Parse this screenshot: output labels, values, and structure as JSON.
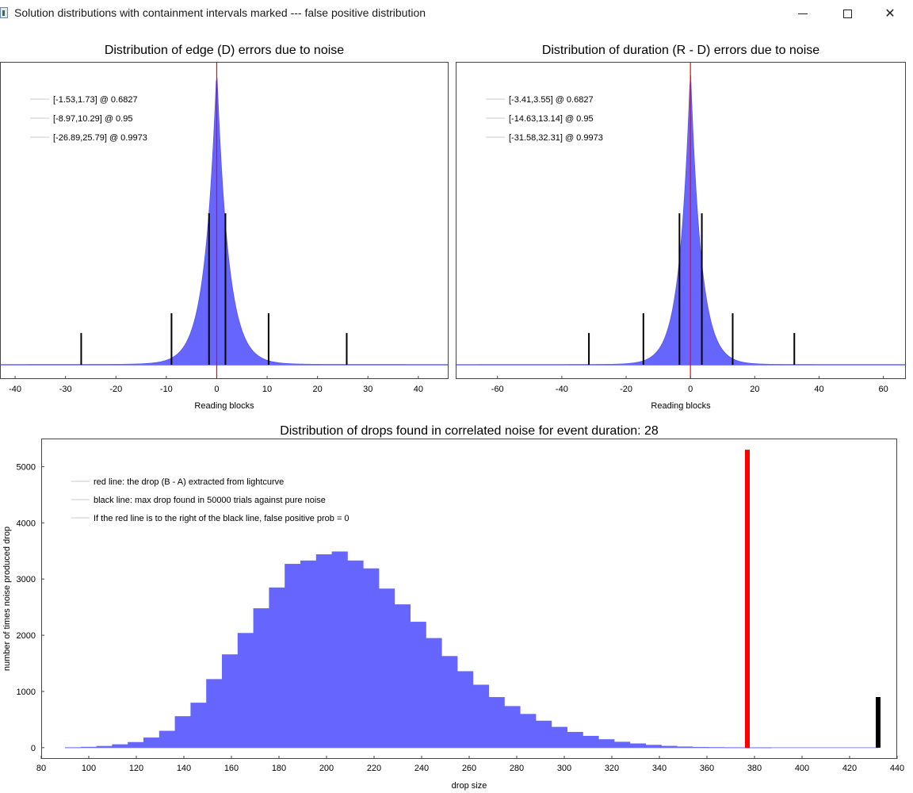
{
  "window": {
    "title": "Solution distributions with containment intervals marked --- false positive distribution",
    "minimize_icon": "minimize-icon",
    "maximize_icon": "maximize-icon",
    "close_icon": "close-icon"
  },
  "chart_data": [
    {
      "type": "area",
      "title": "Distribution of edge (D) errors due to noise",
      "xlabel": "Reading blocks",
      "ylabel": "",
      "xlim": [
        -43,
        46
      ],
      "xticks": [
        -40,
        -30,
        -20,
        -10,
        0,
        10,
        20,
        30,
        40
      ],
      "distribution": {
        "center": 0,
        "scale": 2.3,
        "fill": "#6666ff"
      },
      "red_line_x": 0,
      "interval_lines": [
        {
          "x": -1.53,
          "height": 0.5
        },
        {
          "x": 1.73,
          "height": 0.5
        },
        {
          "x": -8.97,
          "height": 0.17
        },
        {
          "x": 10.29,
          "height": 0.17
        },
        {
          "x": -26.89,
          "height": 0.105
        },
        {
          "x": 25.79,
          "height": 0.105
        }
      ],
      "legend": [
        "[-1.53,1.73] @ 0.6827",
        "[-8.97,10.29] @ 0.95",
        "[-26.89,25.79] @ 0.9973"
      ]
    },
    {
      "type": "area",
      "title": "Distribution of duration (R - D) errors due to noise",
      "xlabel": "Reading blocks",
      "ylabel": "",
      "xlim": [
        -73,
        67
      ],
      "xticks": [
        -60,
        -40,
        -20,
        0,
        20,
        40,
        60
      ],
      "distribution": {
        "center": 0,
        "scale": 3.3,
        "fill": "#6666ff"
      },
      "red_line_x": 0,
      "interval_lines": [
        {
          "x": -3.41,
          "height": 0.5
        },
        {
          "x": 3.55,
          "height": 0.5
        },
        {
          "x": -14.63,
          "height": 0.17
        },
        {
          "x": 13.14,
          "height": 0.17
        },
        {
          "x": -31.58,
          "height": 0.105
        },
        {
          "x": 32.31,
          "height": 0.105
        }
      ],
      "legend": [
        "[-3.41,3.55] @ 0.6827",
        "[-14.63,13.14] @ 0.95",
        "[-31.58,32.31] @ 0.9973"
      ]
    },
    {
      "type": "bar",
      "title": "Distribution of drops found in correlated noise for event duration: 28",
      "xlabel": "drop size",
      "ylabel": "number of times noise produced drop",
      "xlim": [
        80,
        440
      ],
      "ylim": [
        -200,
        5500
      ],
      "xticks": [
        80,
        100,
        120,
        140,
        160,
        180,
        200,
        220,
        240,
        260,
        280,
        300,
        320,
        340,
        360,
        380,
        400,
        420,
        440
      ],
      "yticks": [
        0,
        1000,
        2000,
        3000,
        4000,
        5000
      ],
      "bin_width": 6.6,
      "bin_starts": [
        90,
        96.6,
        103.2,
        109.8,
        116.4,
        123,
        129.6,
        136.2,
        142.8,
        149.4,
        156,
        162.6,
        169.2,
        175.8,
        182.4,
        189,
        195.6,
        202.2,
        208.8,
        215.4,
        222,
        228.6,
        235.2,
        241.8,
        248.4,
        255,
        261.6,
        268.2,
        274.8,
        281.4,
        288,
        294.6,
        301.2,
        307.8,
        314.4,
        321,
        327.6,
        334.2,
        340.8,
        347.4,
        354,
        360.6,
        367.2,
        373.8,
        380.4
      ],
      "values": [
        5,
        15,
        30,
        60,
        100,
        180,
        300,
        560,
        800,
        1220,
        1660,
        2040,
        2480,
        2850,
        3270,
        3330,
        3440,
        3490,
        3330,
        3190,
        2830,
        2550,
        2240,
        1950,
        1630,
        1360,
        1120,
        900,
        740,
        600,
        480,
        370,
        280,
        210,
        150,
        105,
        75,
        50,
        32,
        20,
        12,
        8,
        5,
        3,
        2
      ],
      "fill": "#6666ff",
      "red_line": {
        "x": 377,
        "y": 5300,
        "color": "#ff0000"
      },
      "black_line": {
        "x": 432,
        "y": 900,
        "color": "#000000"
      },
      "legend": [
        "red line: the drop (B - A) extracted from lightcurve",
        "black line: max drop found in 50000 trials against pure noise",
        "If the red line is to the right of the black line, false positive prob = 0"
      ]
    }
  ]
}
